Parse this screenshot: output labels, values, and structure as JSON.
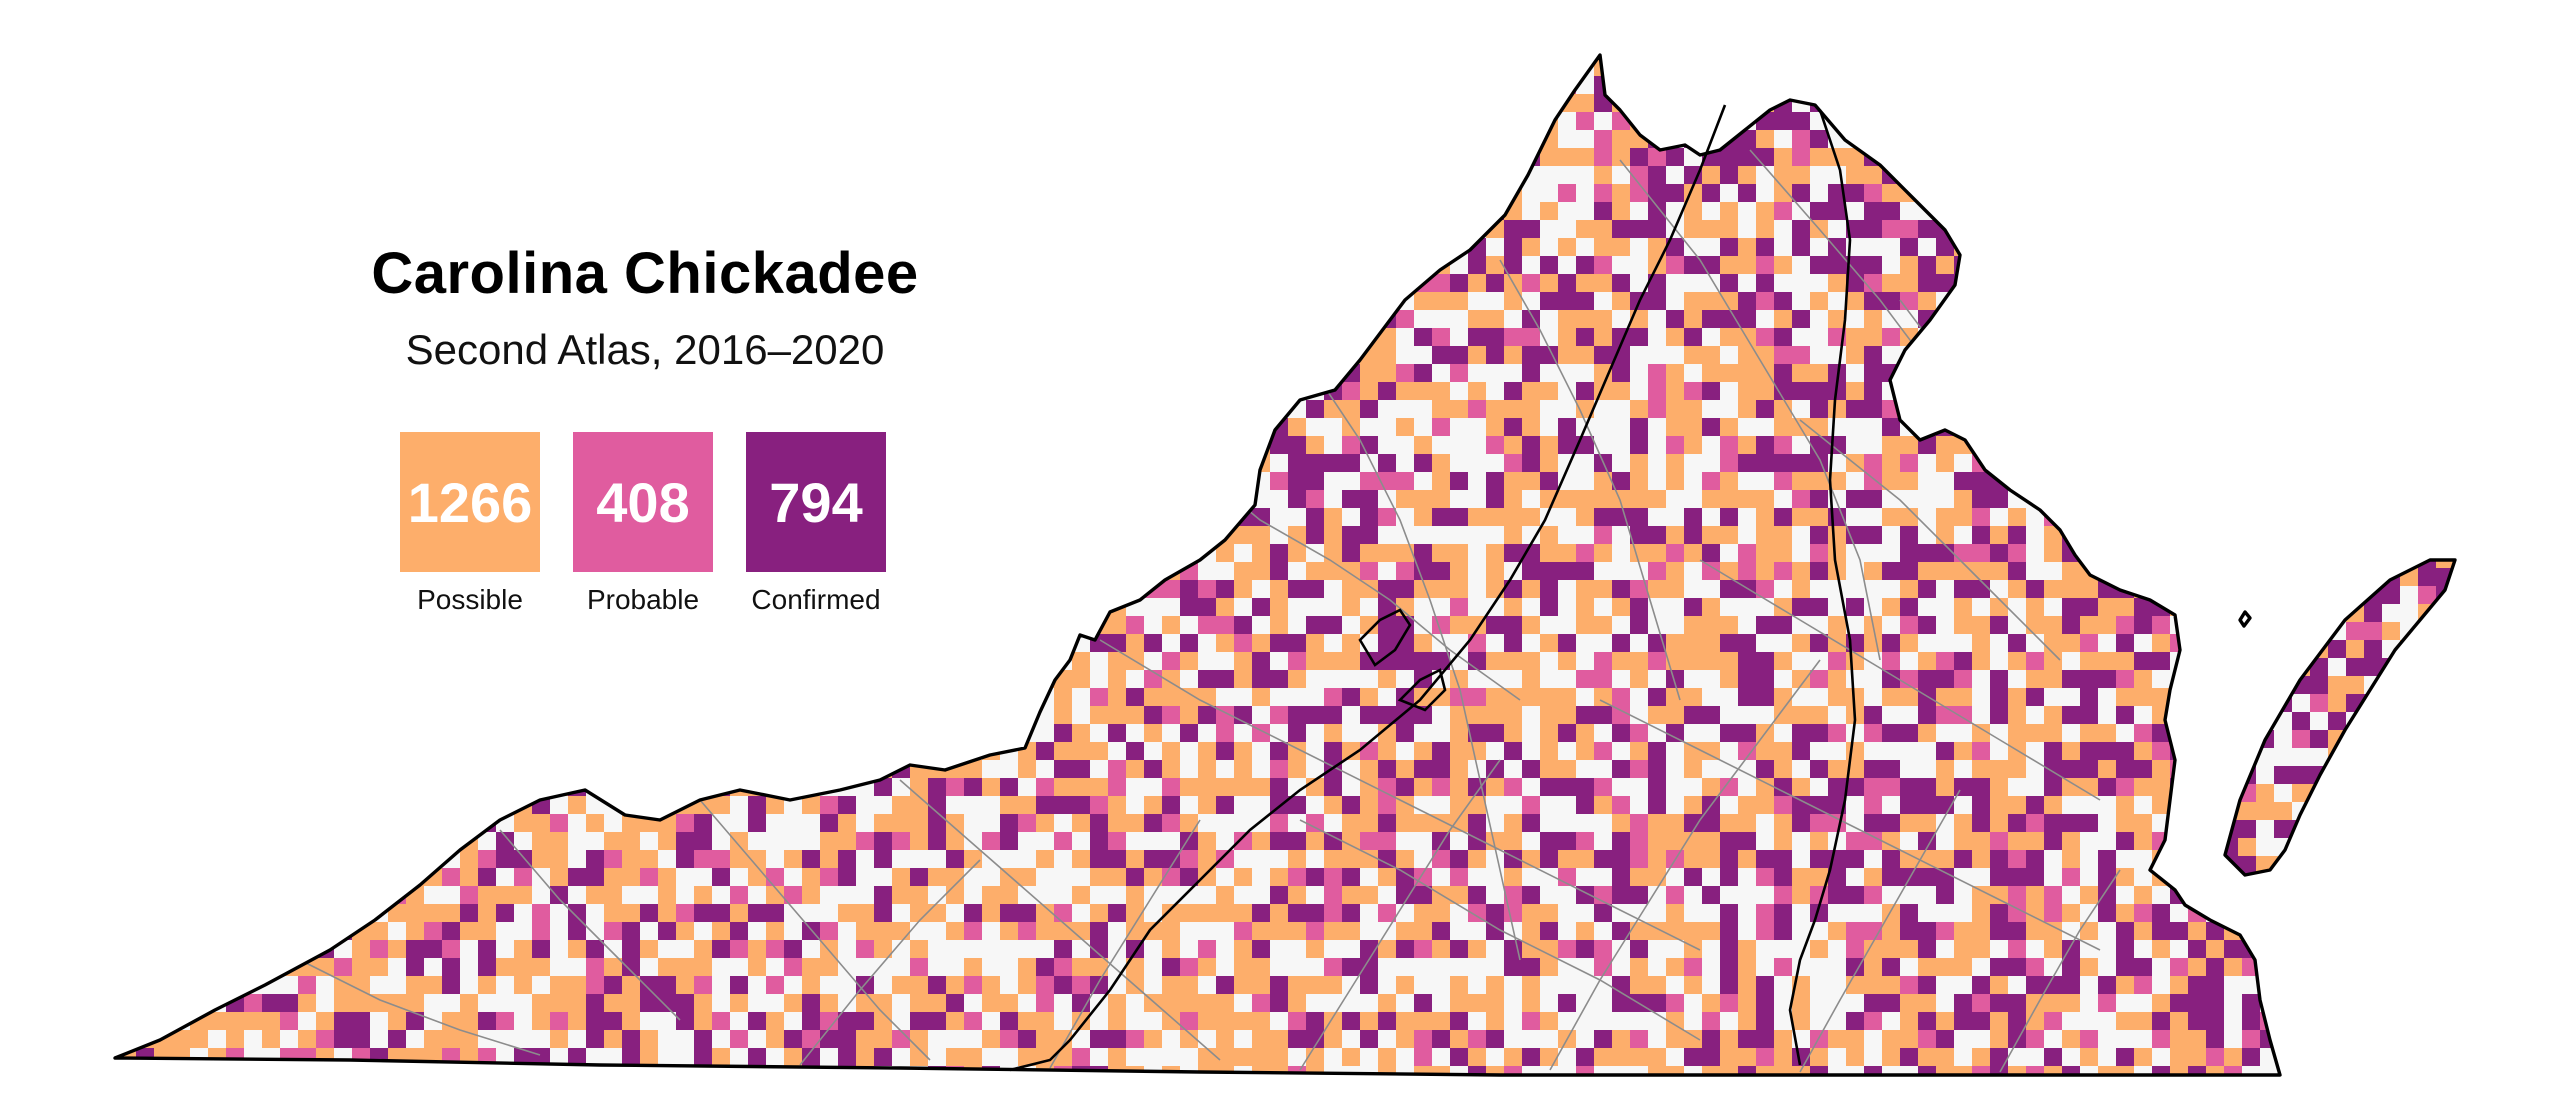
{
  "title": "Carolina Chickadee",
  "subtitle": "Second Atlas, 2016–2020",
  "legend": [
    {
      "count": "1266",
      "label": "Possible",
      "color": "#FDAE6B"
    },
    {
      "count": "408",
      "label": "Probable",
      "color": "#E05C9F"
    },
    {
      "count": "794",
      "label": "Confirmed",
      "color": "#88207F"
    }
  ],
  "map": {
    "region": "Virginia",
    "unsurveyed_color": "#F5F5F5",
    "boundary_color": "#000000",
    "county_line_color": "#8C8C8C",
    "grid_cells": "atlas blocks colored by highest breeding code"
  }
}
